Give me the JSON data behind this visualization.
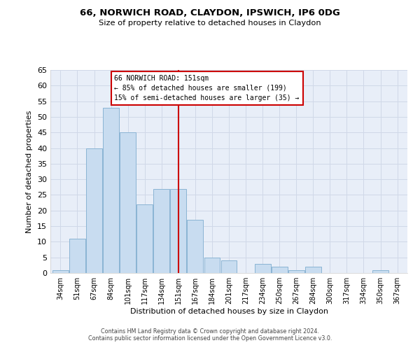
{
  "title": "66, NORWICH ROAD, CLAYDON, IPSWICH, IP6 0DG",
  "subtitle": "Size of property relative to detached houses in Claydon",
  "xlabel": "Distribution of detached houses by size in Claydon",
  "ylabel": "Number of detached properties",
  "footer_lines": [
    "Contains HM Land Registry data © Crown copyright and database right 2024.",
    "Contains public sector information licensed under the Open Government Licence v3.0."
  ],
  "bin_labels": [
    "34sqm",
    "51sqm",
    "67sqm",
    "84sqm",
    "101sqm",
    "117sqm",
    "134sqm",
    "151sqm",
    "167sqm",
    "184sqm",
    "201sqm",
    "217sqm",
    "234sqm",
    "250sqm",
    "267sqm",
    "284sqm",
    "300sqm",
    "317sqm",
    "334sqm",
    "350sqm",
    "367sqm"
  ],
  "bar_values": [
    1,
    11,
    40,
    53,
    45,
    22,
    27,
    27,
    17,
    5,
    4,
    0,
    3,
    2,
    1,
    2,
    0,
    0,
    0,
    1,
    0
  ],
  "bar_color": "#c8dcf0",
  "bar_edge_color": "#8ab4d4",
  "highlight_x_label": "151sqm",
  "highlight_line_color": "#cc0000",
  "annotation_title": "66 NORWICH ROAD: 151sqm",
  "annotation_line1": "← 85% of detached houses are smaller (199)",
  "annotation_line2": "15% of semi-detached houses are larger (35) →",
  "annotation_box_color": "#ffffff",
  "annotation_box_edge_color": "#cc0000",
  "ylim": [
    0,
    65
  ],
  "yticks": [
    0,
    5,
    10,
    15,
    20,
    25,
    30,
    35,
    40,
    45,
    50,
    55,
    60,
    65
  ],
  "grid_color": "#d0d8e8",
  "background_color": "#e8eef8"
}
